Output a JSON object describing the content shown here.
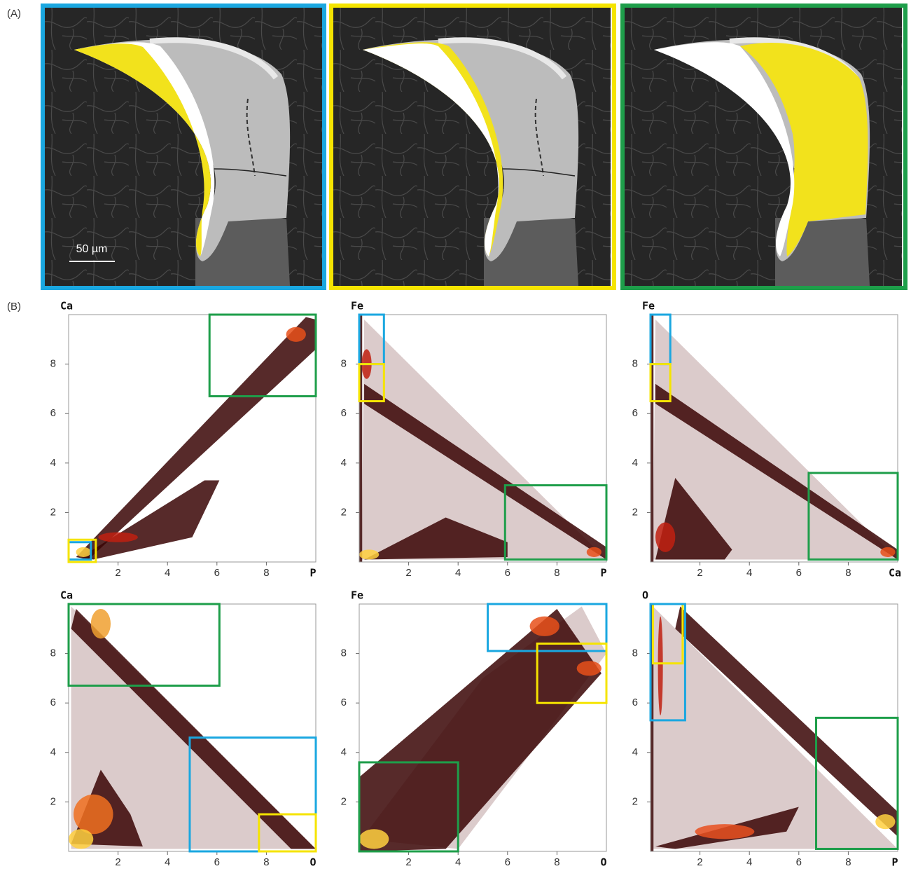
{
  "figure_labels": {
    "a": "(A)",
    "b": "(B)"
  },
  "scale_bar": "50 µm",
  "chart_data": [
    {
      "type": "density",
      "x_label": "P",
      "y_label": "Ca",
      "xlim": [
        0,
        10
      ],
      "ylim": [
        0,
        10
      ],
      "xticks": [
        2,
        4,
        6,
        8
      ],
      "yticks": [
        2,
        4,
        6,
        8
      ],
      "gates": [
        {
          "color": "#1aa7e0",
          "x": [
            0,
            0.9
          ],
          "y": [
            0.1,
            0.8
          ]
        },
        {
          "color": "#f5e400",
          "x": [
            0,
            1.1
          ],
          "y": [
            0,
            0.9
          ]
        },
        {
          "color": "#1e9e4a",
          "x": [
            5.7,
            10
          ],
          "y": [
            6.7,
            10
          ]
        }
      ]
    },
    {
      "type": "density",
      "x_label": "P",
      "y_label": "Fe",
      "xlim": [
        0,
        10
      ],
      "ylim": [
        0,
        10
      ],
      "xticks": [
        2,
        4,
        6,
        8
      ],
      "yticks": [
        2,
        4,
        6,
        8
      ],
      "gates": [
        {
          "color": "#1aa7e0",
          "x": [
            0,
            1
          ],
          "y": [
            8,
            10
          ]
        },
        {
          "color": "#f5e400",
          "x": [
            0,
            1
          ],
          "y": [
            6.5,
            8
          ]
        },
        {
          "color": "#1e9e4a",
          "x": [
            5.9,
            10
          ],
          "y": [
            0.1,
            3.1
          ]
        }
      ]
    },
    {
      "type": "density",
      "x_label": "Ca",
      "y_label": "Fe",
      "xlim": [
        0,
        10
      ],
      "ylim": [
        0,
        10
      ],
      "xticks": [
        2,
        4,
        6,
        8
      ],
      "yticks": [
        2,
        4,
        6,
        8
      ],
      "gates": [
        {
          "color": "#1aa7e0",
          "x": [
            0,
            0.8
          ],
          "y": [
            8,
            10
          ]
        },
        {
          "color": "#f5e400",
          "x": [
            0,
            0.8
          ],
          "y": [
            6.5,
            8
          ]
        },
        {
          "color": "#1e9e4a",
          "x": [
            6.4,
            10
          ],
          "y": [
            0.1,
            3.6
          ]
        }
      ]
    },
    {
      "type": "density",
      "x_label": "O",
      "y_label": "Ca",
      "xlim": [
        0,
        10
      ],
      "ylim": [
        0,
        10
      ],
      "xticks": [
        2,
        4,
        6,
        8
      ],
      "yticks": [
        2,
        4,
        6,
        8
      ],
      "gates": [
        {
          "color": "#1e9e4a",
          "x": [
            0,
            6.1
          ],
          "y": [
            6.7,
            10
          ]
        },
        {
          "color": "#1aa7e0",
          "x": [
            4.9,
            10
          ],
          "y": [
            0,
            4.6
          ]
        },
        {
          "color": "#f5e400",
          "x": [
            7.7,
            10
          ],
          "y": [
            0,
            1.5
          ]
        }
      ]
    },
    {
      "type": "density",
      "x_label": "O",
      "y_label": "Fe",
      "xlim": [
        0,
        10
      ],
      "ylim": [
        0,
        10
      ],
      "xticks": [
        2,
        4,
        6,
        8
      ],
      "yticks": [
        2,
        4,
        6,
        8
      ],
      "gates": [
        {
          "color": "#1aa7e0",
          "x": [
            5.2,
            10
          ],
          "y": [
            8.1,
            10
          ]
        },
        {
          "color": "#f5e400",
          "x": [
            7.2,
            10
          ],
          "y": [
            6,
            8.4
          ]
        },
        {
          "color": "#1e9e4a",
          "x": [
            0,
            4
          ],
          "y": [
            0,
            3.6
          ]
        }
      ]
    },
    {
      "type": "density",
      "x_label": "P",
      "y_label": "O",
      "xlim": [
        0,
        10
      ],
      "ylim": [
        0,
        10
      ],
      "xticks": [
        2,
        4,
        6,
        8
      ],
      "yticks": [
        2,
        4,
        6,
        8
      ],
      "gates": [
        {
          "color": "#f5e400",
          "x": [
            0.1,
            1.3
          ],
          "y": [
            7.6,
            10
          ]
        },
        {
          "color": "#1aa7e0",
          "x": [
            0,
            1.4
          ],
          "y": [
            5.3,
            10
          ]
        },
        {
          "color": "#1e9e4a",
          "x": [
            6.7,
            10
          ],
          "y": [
            0.1,
            5.4
          ]
        }
      ]
    }
  ]
}
